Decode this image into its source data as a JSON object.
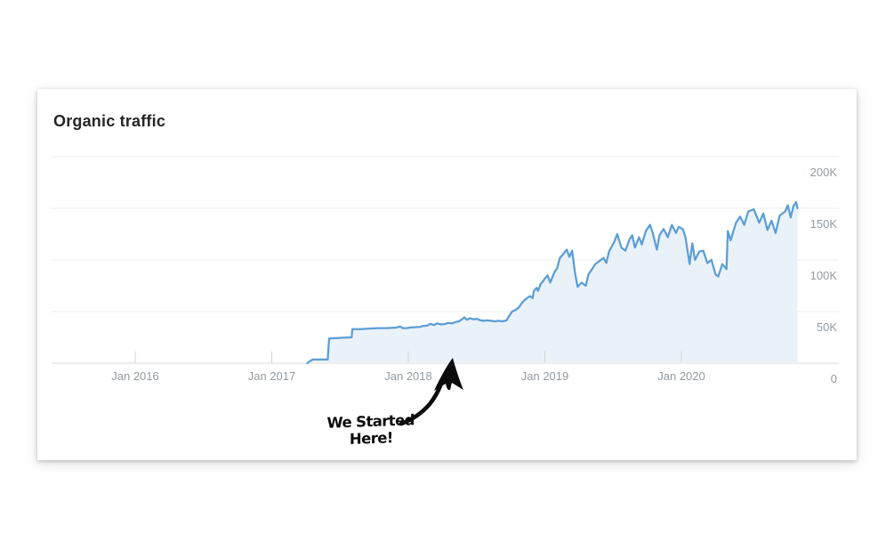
{
  "card": {
    "title": "Organic traffic"
  },
  "annotation": {
    "line1": "We Started",
    "line2": "Here!"
  },
  "chart_data": {
    "type": "area",
    "title": "Organic traffic",
    "xlabel": "",
    "ylabel": "",
    "legend": "none",
    "grid": "horizontal",
    "y_axis_side": "right",
    "unit": "monthly organic visits, thousands (K)",
    "x_range_years": [
      2015.4,
      2021.15
    ],
    "ylim": [
      0,
      205
    ],
    "x_ticks": [
      {
        "year": 2016,
        "label": "Jan 2016"
      },
      {
        "year": 2017,
        "label": "Jan 2017"
      },
      {
        "year": 2018,
        "label": "Jan 2018"
      },
      {
        "year": 2019,
        "label": "Jan 2019"
      },
      {
        "year": 2020,
        "label": "Jan 2020"
      }
    ],
    "y_ticks": [
      {
        "value": 200,
        "label": "200K"
      },
      {
        "value": 150,
        "label": "150K"
      },
      {
        "value": 100,
        "label": "100K"
      },
      {
        "value": 50,
        "label": "50K"
      },
      {
        "value": 0,
        "label": "0"
      }
    ],
    "line_color": "#5b9ed6",
    "fill_color": "#eaf2f9",
    "points": [
      [
        2017.26,
        0
      ],
      [
        2017.28,
        2
      ],
      [
        2017.3,
        3.5
      ],
      [
        2017.36,
        3.5
      ],
      [
        2017.41,
        3.5
      ],
      [
        2017.42,
        24
      ],
      [
        2017.49,
        24.5
      ],
      [
        2017.57,
        25
      ],
      [
        2017.585,
        25
      ],
      [
        2017.59,
        33
      ],
      [
        2017.65,
        33
      ],
      [
        2017.71,
        33.5
      ],
      [
        2017.78,
        34
      ],
      [
        2017.84,
        34
      ],
      [
        2017.91,
        34.5
      ],
      [
        2017.94,
        35.5
      ],
      [
        2017.96,
        34
      ],
      [
        2017.99,
        34
      ],
      [
        2018.01,
        34.5
      ],
      [
        2018.06,
        35
      ],
      [
        2018.08,
        35
      ],
      [
        2018.11,
        36
      ],
      [
        2018.14,
        36.5
      ],
      [
        2018.16,
        38
      ],
      [
        2018.19,
        37
      ],
      [
        2018.21,
        38.5
      ],
      [
        2018.24,
        37.5
      ],
      [
        2018.27,
        38
      ],
      [
        2018.29,
        39
      ],
      [
        2018.32,
        38.5
      ],
      [
        2018.35,
        40
      ],
      [
        2018.37,
        40.5
      ],
      [
        2018.4,
        43
      ],
      [
        2018.41,
        44.5
      ],
      [
        2018.43,
        42
      ],
      [
        2018.45,
        43.5
      ],
      [
        2018.48,
        42.5
      ],
      [
        2018.5,
        43
      ],
      [
        2018.53,
        41.5
      ],
      [
        2018.55,
        41
      ],
      [
        2018.58,
        41.5
      ],
      [
        2018.61,
        41
      ],
      [
        2018.63,
        40.5
      ],
      [
        2018.66,
        41
      ],
      [
        2018.69,
        40.5
      ],
      [
        2018.72,
        41.5
      ],
      [
        2018.74,
        46
      ],
      [
        2018.76,
        50
      ],
      [
        2018.79,
        52
      ],
      [
        2018.81,
        54
      ],
      [
        2018.83,
        58
      ],
      [
        2018.85,
        61
      ],
      [
        2018.87,
        63
      ],
      [
        2018.89,
        65
      ],
      [
        2018.91,
        63
      ],
      [
        2018.92,
        70
      ],
      [
        2018.94,
        73
      ],
      [
        2018.95,
        70
      ],
      [
        2018.97,
        77
      ],
      [
        2018.99,
        80
      ],
      [
        2019.0,
        82
      ],
      [
        2019.02,
        85
      ],
      [
        2019.04,
        78
      ],
      [
        2019.07,
        88
      ],
      [
        2019.09,
        92
      ],
      [
        2019.11,
        102
      ],
      [
        2019.13,
        105
      ],
      [
        2019.16,
        110
      ],
      [
        2019.18,
        103
      ],
      [
        2019.2,
        109
      ],
      [
        2019.22,
        88
      ],
      [
        2019.24,
        74
      ],
      [
        2019.27,
        78
      ],
      [
        2019.3,
        75
      ],
      [
        2019.32,
        86
      ],
      [
        2019.35,
        92
      ],
      [
        2019.37,
        96
      ],
      [
        2019.4,
        99
      ],
      [
        2019.43,
        102
      ],
      [
        2019.45,
        97
      ],
      [
        2019.47,
        108
      ],
      [
        2019.49,
        113
      ],
      [
        2019.51,
        118
      ],
      [
        2019.53,
        125
      ],
      [
        2019.56,
        112
      ],
      [
        2019.59,
        109
      ],
      [
        2019.62,
        120
      ],
      [
        2019.64,
        124
      ],
      [
        2019.66,
        112
      ],
      [
        2019.69,
        122
      ],
      [
        2019.71,
        115
      ],
      [
        2019.74,
        128
      ],
      [
        2019.77,
        134
      ],
      [
        2019.79,
        126
      ],
      [
        2019.82,
        110
      ],
      [
        2019.84,
        124
      ],
      [
        2019.87,
        130
      ],
      [
        2019.9,
        122
      ],
      [
        2019.93,
        134
      ],
      [
        2019.96,
        126
      ],
      [
        2019.98,
        132
      ],
      [
        2020.01,
        130
      ],
      [
        2020.03,
        122
      ],
      [
        2020.06,
        96
      ],
      [
        2020.08,
        116
      ],
      [
        2020.1,
        100
      ],
      [
        2020.13,
        108
      ],
      [
        2020.16,
        109
      ],
      [
        2020.19,
        97
      ],
      [
        2020.22,
        100
      ],
      [
        2020.25,
        86
      ],
      [
        2020.27,
        84
      ],
      [
        2020.3,
        96
      ],
      [
        2020.33,
        91
      ],
      [
        2020.34,
        128
      ],
      [
        2020.36,
        119
      ],
      [
        2020.4,
        136
      ],
      [
        2020.43,
        142
      ],
      [
        2020.46,
        134
      ],
      [
        2020.49,
        147
      ],
      [
        2020.53,
        149
      ],
      [
        2020.57,
        136
      ],
      [
        2020.6,
        145
      ],
      [
        2020.63,
        129
      ],
      [
        2020.66,
        138
      ],
      [
        2020.69,
        126
      ],
      [
        2020.72,
        143
      ],
      [
        2020.76,
        147
      ],
      [
        2020.78,
        153
      ],
      [
        2020.8,
        141
      ],
      [
        2020.82,
        152
      ],
      [
        2020.84,
        156
      ],
      [
        2020.85,
        150
      ]
    ]
  }
}
